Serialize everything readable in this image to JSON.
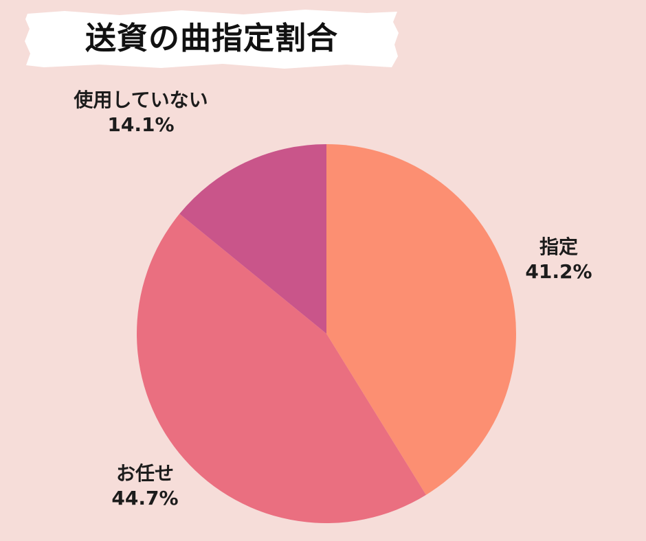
{
  "chart_data": {
    "type": "pie",
    "title": "送資の曲指定割合",
    "labels": [
      "指定",
      "お任せ",
      "使用していない"
    ],
    "values": [
      41.2,
      44.7,
      14.1
    ],
    "value_labels": [
      "41.2%",
      "44.7%",
      "14.1%"
    ],
    "colors": [
      "#fc8f72",
      "#ea6f80",
      "#c9558a"
    ],
    "start_angle": "12 o'clock",
    "direction": "clockwise",
    "legend": "none (labels placed beside slices)"
  },
  "colors": {
    "background": "#f6ddd9",
    "title_banner": "#ffffff",
    "text": "#1c1c1c"
  }
}
